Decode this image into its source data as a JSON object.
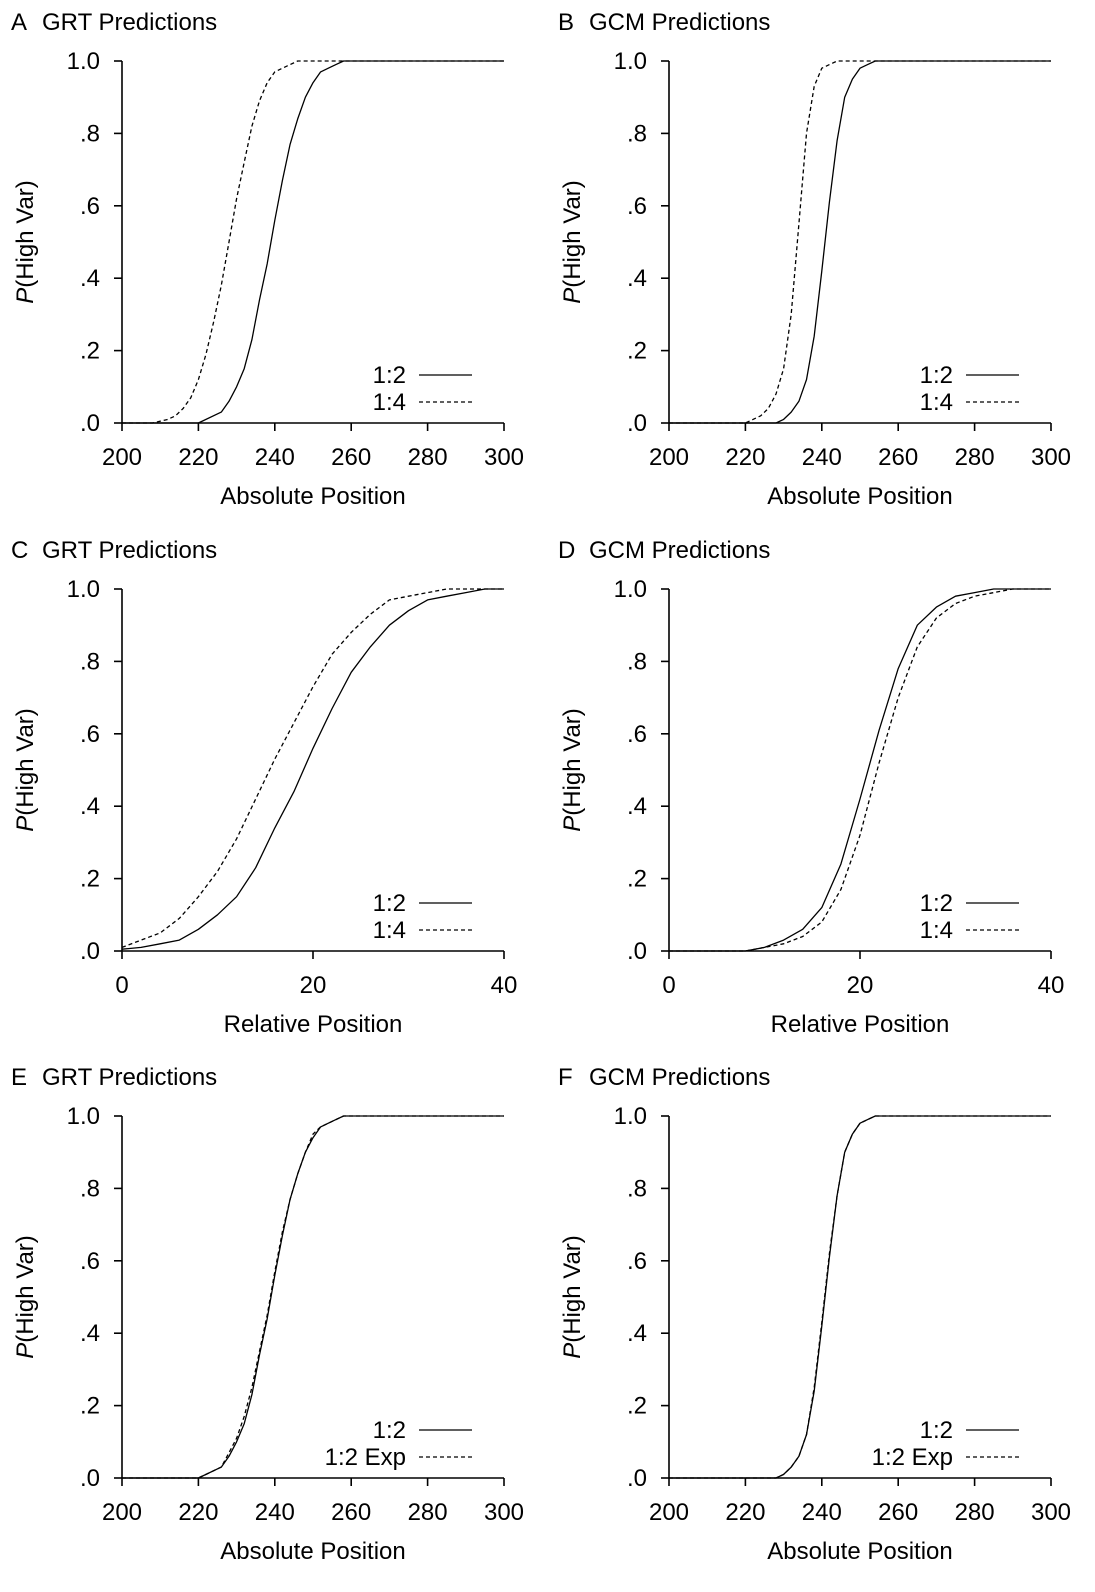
{
  "chart_data": [
    {
      "panel": "A",
      "type": "line",
      "title": "GRT Predictions",
      "xlabel": "Absolute Position",
      "ylabel_italic": "P",
      "ylabel_rest": "(High Var)",
      "xlim": [
        200,
        300
      ],
      "ylim": [
        0,
        1
      ],
      "xticks": [
        200,
        220,
        240,
        260,
        280,
        300
      ],
      "xtick_labels": [
        "200",
        "220",
        "240",
        "260",
        "280",
        "300"
      ],
      "yticks": [
        0,
        0.2,
        0.4,
        0.6,
        0.8,
        1.0
      ],
      "ytick_labels": [
        ".0",
        ".2",
        ".4",
        ".6",
        ".8",
        "1.0"
      ],
      "legend": "bottom-right",
      "series": [
        {
          "name": "1:2",
          "style": "solid",
          "x": [
            200,
            220,
            226,
            228,
            230,
            232,
            234,
            236,
            238,
            240,
            242,
            244,
            246,
            248,
            250,
            252,
            254,
            256,
            258,
            300
          ],
          "y": [
            0,
            0,
            0.03,
            0.06,
            0.1,
            0.15,
            0.23,
            0.34,
            0.44,
            0.56,
            0.67,
            0.77,
            0.84,
            0.9,
            0.94,
            0.97,
            0.98,
            0.99,
            1.0,
            1.0
          ]
        },
        {
          "name": "1:4",
          "style": "dashed",
          "x": [
            200,
            208,
            212,
            214,
            216,
            218,
            220,
            222,
            224,
            226,
            228,
            230,
            232,
            234,
            236,
            238,
            240,
            242,
            244,
            246,
            248,
            300
          ],
          "y": [
            0,
            0,
            0.01,
            0.02,
            0.04,
            0.07,
            0.12,
            0.19,
            0.28,
            0.38,
            0.5,
            0.62,
            0.72,
            0.82,
            0.89,
            0.94,
            0.97,
            0.98,
            0.99,
            1.0,
            1.0,
            1.0
          ]
        }
      ]
    },
    {
      "panel": "B",
      "type": "line",
      "title": "GCM Predictions",
      "xlabel": "Absolute Position",
      "ylabel_italic": "P",
      "ylabel_rest": "(High Var)",
      "xlim": [
        200,
        300
      ],
      "ylim": [
        0,
        1
      ],
      "xticks": [
        200,
        220,
        240,
        260,
        280,
        300
      ],
      "xtick_labels": [
        "200",
        "220",
        "240",
        "260",
        "280",
        "300"
      ],
      "yticks": [
        0,
        0.2,
        0.4,
        0.6,
        0.8,
        1.0
      ],
      "ytick_labels": [
        ".0",
        ".2",
        ".4",
        ".6",
        ".8",
        "1.0"
      ],
      "legend": "bottom-right",
      "series": [
        {
          "name": "1:2",
          "style": "solid",
          "x": [
            200,
            228,
            230,
            232,
            234,
            236,
            238,
            240,
            242,
            244,
            246,
            248,
            250,
            252,
            254,
            300
          ],
          "y": [
            0,
            0,
            0.01,
            0.03,
            0.06,
            0.12,
            0.24,
            0.42,
            0.61,
            0.78,
            0.9,
            0.95,
            0.98,
            0.99,
            1.0,
            1.0
          ]
        },
        {
          "name": "1:4",
          "style": "dashed",
          "x": [
            200,
            220,
            222,
            224,
            226,
            228,
            230,
            232,
            234,
            236,
            238,
            240,
            242,
            244,
            246,
            300
          ],
          "y": [
            0,
            0,
            0.01,
            0.02,
            0.04,
            0.08,
            0.15,
            0.3,
            0.55,
            0.8,
            0.93,
            0.98,
            0.99,
            1.0,
            1.0,
            1.0
          ]
        }
      ]
    },
    {
      "panel": "C",
      "type": "line",
      "title": "GRT Predictions",
      "xlabel": "Relative Position",
      "ylabel_italic": "P",
      "ylabel_rest": "(High Var)",
      "xlim": [
        0,
        40
      ],
      "ylim": [
        0,
        1
      ],
      "xticks": [
        0,
        20,
        40
      ],
      "xtick_labels": [
        "0",
        "20",
        "40"
      ],
      "yticks": [
        0,
        0.2,
        0.4,
        0.6,
        0.8,
        1.0
      ],
      "ytick_labels": [
        ".0",
        ".2",
        ".4",
        ".6",
        ".8",
        "1.0"
      ],
      "legend": "bottom-right",
      "series": [
        {
          "name": "1:2",
          "style": "solid",
          "x": [
            0,
            2,
            4,
            6,
            8,
            10,
            12,
            14,
            16,
            18,
            20,
            22,
            24,
            26,
            28,
            30,
            32,
            34,
            36,
            38,
            40
          ],
          "y": [
            0.005,
            0.01,
            0.02,
            0.03,
            0.06,
            0.1,
            0.15,
            0.23,
            0.34,
            0.44,
            0.56,
            0.67,
            0.77,
            0.84,
            0.9,
            0.94,
            0.97,
            0.98,
            0.99,
            1.0,
            1.0
          ]
        },
        {
          "name": "1:4",
          "style": "dashed",
          "x": [
            0,
            2,
            4,
            6,
            8,
            10,
            12,
            14,
            16,
            18,
            20,
            22,
            24,
            26,
            28,
            30,
            32,
            34,
            36,
            38,
            40
          ],
          "y": [
            0.01,
            0.03,
            0.05,
            0.09,
            0.15,
            0.22,
            0.31,
            0.42,
            0.53,
            0.63,
            0.73,
            0.82,
            0.88,
            0.93,
            0.97,
            0.98,
            0.99,
            1.0,
            1.0,
            1.0,
            1.0
          ]
        }
      ]
    },
    {
      "panel": "D",
      "type": "line",
      "title": "GCM Predictions",
      "xlabel": "Relative Position",
      "ylabel_italic": "P",
      "ylabel_rest": "(High Var)",
      "xlim": [
        0,
        40
      ],
      "ylim": [
        0,
        1
      ],
      "xticks": [
        0,
        20,
        40
      ],
      "xtick_labels": [
        "0",
        "20",
        "40"
      ],
      "yticks": [
        0,
        0.2,
        0.4,
        0.6,
        0.8,
        1.0
      ],
      "ytick_labels": [
        ".0",
        ".2",
        ".4",
        ".6",
        ".8",
        "1.0"
      ],
      "legend": "bottom-right",
      "series": [
        {
          "name": "1:2",
          "style": "solid",
          "x": [
            0,
            8,
            10,
            12,
            14,
            16,
            18,
            20,
            22,
            24,
            26,
            28,
            30,
            32,
            34,
            40
          ],
          "y": [
            0,
            0,
            0.01,
            0.03,
            0.06,
            0.12,
            0.24,
            0.42,
            0.61,
            0.78,
            0.9,
            0.95,
            0.98,
            0.99,
            1.0,
            1.0
          ]
        },
        {
          "name": "1:4",
          "style": "dashed",
          "x": [
            0,
            8,
            10,
            12,
            14,
            16,
            18,
            20,
            22,
            24,
            26,
            28,
            30,
            32,
            34,
            36,
            40
          ],
          "y": [
            0,
            0,
            0.01,
            0.02,
            0.04,
            0.08,
            0.17,
            0.32,
            0.52,
            0.7,
            0.84,
            0.92,
            0.96,
            0.98,
            0.99,
            1.0,
            1.0
          ]
        }
      ]
    },
    {
      "panel": "E",
      "type": "line",
      "title": "GRT Predictions",
      "xlabel": "Absolute Position",
      "ylabel_italic": "P",
      "ylabel_rest": "(High Var)",
      "xlim": [
        200,
        300
      ],
      "ylim": [
        0,
        1
      ],
      "xticks": [
        200,
        220,
        240,
        260,
        280,
        300
      ],
      "xtick_labels": [
        "200",
        "220",
        "240",
        "260",
        "280",
        "300"
      ],
      "yticks": [
        0,
        0.2,
        0.4,
        0.6,
        0.8,
        1.0
      ],
      "ytick_labels": [
        ".0",
        ".2",
        ".4",
        ".6",
        ".8",
        "1.0"
      ],
      "legend": "bottom-right",
      "series": [
        {
          "name": "1:2",
          "style": "solid",
          "x": [
            200,
            220,
            226,
            228,
            230,
            232,
            234,
            236,
            238,
            240,
            242,
            244,
            246,
            248,
            250,
            252,
            254,
            256,
            258,
            300
          ],
          "y": [
            0,
            0,
            0.03,
            0.06,
            0.1,
            0.15,
            0.23,
            0.34,
            0.44,
            0.56,
            0.67,
            0.77,
            0.84,
            0.9,
            0.94,
            0.97,
            0.98,
            0.99,
            1.0,
            1.0
          ]
        },
        {
          "name": "1:2 Exp",
          "style": "dashed",
          "x": [
            200,
            220,
            226,
            228,
            230,
            232,
            234,
            236,
            238,
            240,
            242,
            244,
            246,
            248,
            250,
            252,
            254,
            256,
            258,
            300
          ],
          "y": [
            0,
            0,
            0.03,
            0.07,
            0.11,
            0.17,
            0.25,
            0.35,
            0.45,
            0.57,
            0.68,
            0.77,
            0.84,
            0.9,
            0.95,
            0.97,
            0.98,
            0.99,
            1.0,
            1.0
          ]
        }
      ]
    },
    {
      "panel": "F",
      "type": "line",
      "title": "GCM Predictions",
      "xlabel": "Absolute Position",
      "ylabel_italic": "P",
      "ylabel_rest": "(High Var)",
      "xlim": [
        200,
        300
      ],
      "ylim": [
        0,
        1
      ],
      "xticks": [
        200,
        220,
        240,
        260,
        280,
        300
      ],
      "xtick_labels": [
        "200",
        "220",
        "240",
        "260",
        "280",
        "300"
      ],
      "yticks": [
        0,
        0.2,
        0.4,
        0.6,
        0.8,
        1.0
      ],
      "ytick_labels": [
        ".0",
        ".2",
        ".4",
        ".6",
        ".8",
        "1.0"
      ],
      "legend": "bottom-right",
      "series": [
        {
          "name": "1:2",
          "style": "solid",
          "x": [
            200,
            228,
            230,
            232,
            234,
            236,
            238,
            240,
            242,
            244,
            246,
            248,
            250,
            252,
            254,
            300
          ],
          "y": [
            0,
            0,
            0.01,
            0.03,
            0.06,
            0.12,
            0.24,
            0.42,
            0.61,
            0.78,
            0.9,
            0.95,
            0.98,
            0.99,
            1.0,
            1.0
          ]
        },
        {
          "name": "1:2 Exp",
          "style": "dashed",
          "x": [
            200,
            228,
            230,
            232,
            234,
            236,
            238,
            240,
            242,
            244,
            246,
            248,
            250,
            252,
            254,
            300
          ],
          "y": [
            0,
            0,
            0.01,
            0.03,
            0.06,
            0.12,
            0.25,
            0.43,
            0.62,
            0.78,
            0.9,
            0.95,
            0.98,
            0.99,
            1.0,
            1.0
          ]
        }
      ]
    }
  ]
}
